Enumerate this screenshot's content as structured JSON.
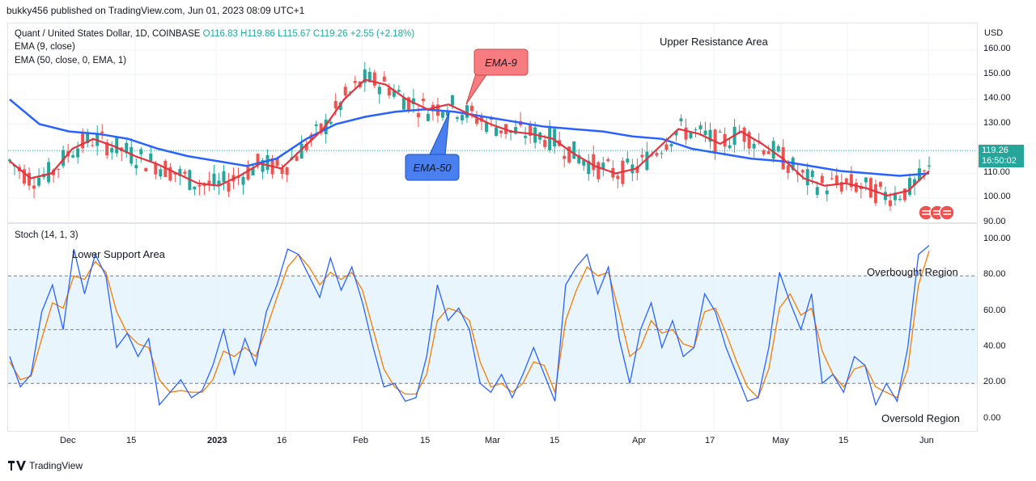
{
  "header": {
    "text": "bukky456 published on TradingView.com, Jun 01, 2023 08:09 UTC+1"
  },
  "price_panel": {
    "symbol": "Quant / United States Dollar, 1D, COINBASE",
    "ohlc": {
      "o": "O116.83",
      "h": "H119.86",
      "l": "L115.67",
      "c": "C119.26",
      "chg": "+2.55 (+2.18%)"
    },
    "ema9_label": "EMA (9, close)",
    "ema50_label": "EMA (50, close, 0, EMA, 1)",
    "currency": "USD",
    "price_ticks": [
      "160.00",
      "150.00",
      "140.00",
      "130.00",
      "110.00",
      "100.00",
      "90.00"
    ],
    "last_price": "119.26",
    "countdown": "16:50:02",
    "upper_annotation": "Upper Resistance Area",
    "callout_ema9": "EMA-9",
    "callout_ema50": "EMA-50"
  },
  "stoch_panel": {
    "label": "Stoch (14, 1, 3)",
    "ticks": [
      "100.00",
      "80.00",
      "60.00",
      "40.00",
      "20.00",
      "0.00"
    ],
    "lower_annotation": "Lower Support Area",
    "overbought": "Overbought Region",
    "oversold": "Oversold Region"
  },
  "x_axis": [
    "Dec",
    "15",
    "2023",
    "16",
    "Feb",
    "15",
    "Mar",
    "15",
    "Apr",
    "17",
    "May",
    "15",
    "Jun"
  ],
  "footer": {
    "brand": "TradingView"
  },
  "colors": {
    "up": "#26a69a",
    "down": "#ef5350",
    "ema9": "#e5323e",
    "ema50": "#2962ff",
    "stoch_k": "#2962ff",
    "stoch_d": "#f57c00",
    "band": "#e3f2fd",
    "callout_red": "#f77c80",
    "callout_blue": "#4a7ff0"
  },
  "chart_data": [
    {
      "type": "candlestick",
      "title": "Quant / United States Dollar, 1D, COINBASE",
      "ylabel": "USD",
      "ylim": [
        88,
        166
      ],
      "x_range": [
        "2022-11-23",
        "2023-06-01"
      ],
      "series": [
        {
          "name": "EMA (9, close)",
          "values": [
            115,
            108,
            110,
            120,
            124,
            121,
            117,
            114,
            110,
            106,
            105,
            109,
            114,
            112,
            120,
            128,
            140,
            148,
            146,
            140,
            136,
            138,
            134,
            130,
            127,
            126,
            124,
            118,
            113,
            110,
            112,
            120,
            128,
            126,
            122,
            127,
            122,
            116,
            108,
            105,
            106,
            104,
            101,
            103,
            111
          ]
        },
        {
          "name": "EMA (50, close, 0, EMA, 1)",
          "values": [
            140,
            130,
            127,
            126,
            124,
            120,
            117,
            115,
            113,
            116,
            124,
            130,
            133,
            135,
            136,
            135,
            133,
            131,
            129,
            128,
            127,
            125,
            124,
            120,
            118,
            116,
            115,
            113,
            111,
            110,
            109,
            110
          ]
        },
        {
          "name": "last close",
          "values": [
            119.26
          ]
        }
      ]
    },
    {
      "type": "line",
      "title": "Stoch (14, 1, 3)",
      "ylim": [
        0,
        100
      ],
      "series": [
        {
          "name": "%K",
          "values": [
            35,
            18,
            25,
            60,
            75,
            50,
            95,
            70,
            92,
            80,
            40,
            48,
            35,
            45,
            8,
            15,
            22,
            12,
            16,
            30,
            50,
            25,
            45,
            30,
            60,
            75,
            95,
            92,
            80,
            68,
            90,
            72,
            85,
            65,
            40,
            18,
            20,
            10,
            12,
            35,
            75,
            55,
            62,
            50,
            20,
            15,
            25,
            12,
            25,
            40,
            25,
            10,
            75,
            85,
            92,
            70,
            85,
            45,
            20,
            50,
            65,
            40,
            55,
            35,
            40,
            70,
            60,
            40,
            25,
            10,
            12,
            40,
            82,
            65,
            50,
            70,
            20,
            25,
            15,
            35,
            30,
            8,
            20,
            10,
            40,
            92,
            97
          ]
        },
        {
          "name": "%D",
          "values": [
            32,
            22,
            24,
            45,
            65,
            62,
            80,
            78,
            88,
            82,
            60,
            48,
            42,
            40,
            22,
            15,
            16,
            15,
            15,
            22,
            38,
            35,
            40,
            35,
            50,
            68,
            85,
            92,
            85,
            75,
            82,
            78,
            82,
            72,
            50,
            28,
            18,
            14,
            14,
            25,
            55,
            62,
            60,
            55,
            32,
            18,
            20,
            15,
            20,
            32,
            30,
            15,
            55,
            72,
            85,
            80,
            82,
            60,
            35,
            40,
            55,
            48,
            50,
            42,
            40,
            60,
            62,
            48,
            32,
            18,
            12,
            28,
            62,
            70,
            58,
            62,
            38,
            25,
            18,
            28,
            30,
            18,
            15,
            12,
            28,
            75,
            94
          ]
        }
      ]
    }
  ]
}
